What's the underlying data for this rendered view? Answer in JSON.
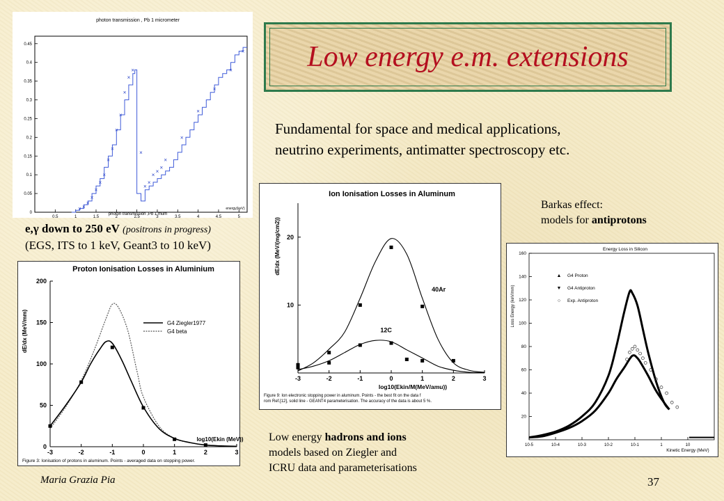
{
  "slide": {
    "title": "Low energy e.m. extensions",
    "intro_line1": "Fundamental for space and medical applications,",
    "intro_line2": "neutrino experiments, antimatter spectroscopy etc.",
    "footer_author": "Maria Grazia Pia",
    "page_number": "37",
    "title_color": "#b40f1f",
    "frame_color": "#2e7a4c"
  },
  "captions": {
    "photon_bold": "e,γ down to 250 eV",
    "photon_italic": "(positrons in progress)",
    "photon_line2": "(EGS, ITS to 1 keV, Geant3 to 10 keV)",
    "barkas_line1": "Barkas effect:",
    "barkas_line2_pre": "models for ",
    "barkas_line2_bold": "antiprotons",
    "hadron_line1_pre": "Low energy ",
    "hadron_line1_bold": "hadrons and ions",
    "hadron_line2": "models based on Ziegler and",
    "hadron_line3": "ICRU data and parameterisations"
  },
  "chart_data": [
    {
      "type": "line",
      "title": "photon transmission , Pb 1 micrometer",
      "xlabel": "photon transmission ,Pb 1 mum",
      "ylabel": "",
      "corner_label": "energy(keV)",
      "xlim": [
        0,
        5.2
      ],
      "ylim": [
        0,
        0.47
      ],
      "x_ticks": [
        "0.5",
        "1",
        "1.5",
        "2",
        "2.5",
        "3",
        "3.5",
        "4",
        "4.5",
        "5"
      ],
      "y_ticks": [
        "0",
        "0.05",
        "0.1",
        "0.15",
        "0.2",
        "0.25",
        "0.3",
        "0.35",
        "0.4",
        "0.45"
      ],
      "step_x": [
        0.9,
        1.0,
        1.1,
        1.2,
        1.3,
        1.4,
        1.5,
        1.6,
        1.7,
        1.8,
        1.9,
        2.0,
        2.1,
        2.2,
        2.3,
        2.4,
        2.45,
        2.5,
        2.6,
        2.7,
        2.8,
        2.9,
        3.0,
        3.1,
        3.2,
        3.3,
        3.4,
        3.5,
        3.6,
        3.7,
        3.8,
        3.9,
        4.0,
        4.1,
        4.2,
        4.3,
        4.4,
        4.5,
        4.6,
        4.7,
        4.8,
        4.9,
        5.0,
        5.1,
        5.2
      ],
      "step_y": [
        0.0,
        0.005,
        0.01,
        0.02,
        0.03,
        0.05,
        0.07,
        0.09,
        0.12,
        0.15,
        0.18,
        0.22,
        0.26,
        0.3,
        0.34,
        0.37,
        0.38,
        0.05,
        0.03,
        0.06,
        0.07,
        0.08,
        0.09,
        0.1,
        0.11,
        0.12,
        0.14,
        0.16,
        0.18,
        0.2,
        0.22,
        0.24,
        0.26,
        0.28,
        0.3,
        0.32,
        0.34,
        0.36,
        0.37,
        0.38,
        0.4,
        0.42,
        0.43,
        0.44,
        0.44
      ],
      "points_x": [
        1.1,
        1.2,
        1.3,
        1.4,
        1.5,
        1.6,
        1.7,
        1.8,
        1.9,
        2.0,
        2.1,
        2.2,
        2.3,
        2.4,
        2.6,
        2.7,
        2.8,
        2.9,
        3.0,
        3.1,
        3.2,
        3.6,
        4.0,
        4.4,
        4.8,
        5.1
      ],
      "points_y": [
        0.01,
        0.015,
        0.025,
        0.04,
        0.06,
        0.08,
        0.1,
        0.14,
        0.17,
        0.22,
        0.26,
        0.32,
        0.36,
        0.38,
        0.16,
        0.07,
        0.08,
        0.1,
        0.11,
        0.12,
        0.14,
        0.2,
        0.27,
        0.33,
        0.38,
        0.43
      ]
    },
    {
      "type": "line",
      "title": "Proton Ionisation Losses in Aluminium",
      "xlabel": "log10(Ekin (MeV))",
      "ylabel": "dE/dx (MeV/mm)",
      "caption": "Figure 3: Ionisation of protons in aluminum. Points - averaged data on stopping power.",
      "xlim": [
        -3,
        3
      ],
      "ylim": [
        0,
        200
      ],
      "x_ticks": [
        "-3",
        "-2",
        "-1",
        "0",
        "1",
        "2",
        "3"
      ],
      "y_ticks": [
        "0",
        "50",
        "100",
        "150",
        "200"
      ],
      "series": [
        {
          "name": "G4 Ziegler1977",
          "x": [
            -3,
            -2.5,
            -2,
            -1.7,
            -1.4,
            -1.2,
            -1,
            -0.7,
            -0.4,
            0,
            0.5,
            1,
            1.5,
            2,
            2.5,
            3
          ],
          "y": [
            25,
            50,
            78,
            100,
            118,
            127,
            125,
            105,
            80,
            48,
            22,
            10,
            5,
            2,
            1,
            0.5
          ]
        },
        {
          "name": "G4 beta",
          "x": [
            -3,
            -2.5,
            -2,
            -1.6,
            -1.2,
            -1,
            -0.8,
            -0.5,
            -0.2,
            0,
            0.5,
            1,
            1.5,
            2,
            2.5,
            3
          ],
          "y": [
            22,
            48,
            80,
            115,
            155,
            172,
            168,
            140,
            90,
            60,
            25,
            10,
            5,
            2,
            1,
            0.5
          ]
        }
      ],
      "points": {
        "x": [
          -3,
          -2,
          -1,
          0,
          1,
          2
        ],
        "y": [
          25,
          78,
          120,
          47,
          9,
          2
        ]
      }
    },
    {
      "type": "line",
      "title": "Ion Ionisation Losses in Aluminum",
      "xlabel": "log10(Ekin/M(MeV/amu))",
      "ylabel": "dE/dx (MeV/(mg/cm2))",
      "caption": "Figure 9: Ion electronic stopping power in aluminum. Points - the best fit on the data from Ref.[12], solid line - GEANT4 parameterisation. The accuracy of the data is about 5 %.",
      "xlim": [
        -3,
        3
      ],
      "ylim": [
        0,
        25
      ],
      "x_ticks": [
        "-3",
        "-2",
        "-1",
        "0",
        "1",
        "2",
        "3"
      ],
      "y_ticks": [
        "10",
        "20"
      ],
      "series": [
        {
          "name": "40Ar",
          "x": [
            -3,
            -2.5,
            -2,
            -1.5,
            -1,
            -0.5,
            0,
            0.5,
            1,
            1.5,
            2,
            2.5,
            3
          ],
          "y": [
            0.3,
            1.5,
            3.5,
            6,
            11,
            16.5,
            19.8,
            17.5,
            11,
            5,
            1.5,
            0.4,
            0.1
          ]
        },
        {
          "name": "12C",
          "x": [
            -3,
            -2.5,
            -2,
            -1.5,
            -1,
            -0.5,
            0,
            0.5,
            1,
            1.5,
            2,
            2.5,
            3
          ],
          "y": [
            0.5,
            1,
            1.8,
            3,
            4.2,
            4.8,
            4.6,
            3.4,
            2.2,
            1,
            0.4,
            0.1,
            0.05
          ]
        }
      ],
      "points_ar": {
        "x": [
          -3,
          -2,
          -1,
          0,
          1,
          2
        ],
        "y": [
          1.2,
          3,
          10,
          18.5,
          9.8,
          1.8
        ]
      },
      "points_c": {
        "x": [
          -3,
          -2,
          -1,
          0,
          0.5,
          1
        ],
        "y": [
          0.8,
          1.5,
          4.1,
          4.4,
          2,
          1.8
        ]
      },
      "annotations": [
        "40Ar",
        "12C"
      ]
    },
    {
      "type": "line",
      "title": "Energy Loss in Silicon",
      "xlabel": "Kinetic Energy (MeV)",
      "ylabel": "Loss Energy (keV/mm)",
      "xlim": [
        -5,
        2
      ],
      "ylim": [
        0,
        160
      ],
      "x_ticks": [
        "10-5",
        "10-4",
        "10-3",
        "10-2",
        "10-1",
        "1",
        "10"
      ],
      "y_ticks": [
        "20",
        "40",
        "60",
        "80",
        "100",
        "120",
        "140",
        "160"
      ],
      "legend": [
        "G4 Proton",
        "G4 Antiproton",
        "Exp. Antiproton"
      ],
      "series": [
        {
          "name": "G4 Proton",
          "x": [
            -5,
            -4.5,
            -4,
            -3.5,
            -3,
            -2.5,
            -2,
            -1.7,
            -1.4,
            -1.2,
            -1.1,
            -0.9,
            -0.7,
            -0.5,
            -0.2,
            0.1,
            0.3
          ],
          "y": [
            2,
            4,
            7,
            12,
            20,
            32,
            55,
            80,
            110,
            127,
            126,
            115,
            95,
            75,
            50,
            32,
            26
          ]
        },
        {
          "name": "G4 Antiproton",
          "x": [
            -5,
            -4.5,
            -4,
            -3.5,
            -3,
            -2.5,
            -2,
            -1.7,
            -1.4,
            -1.1,
            -0.9,
            -0.7,
            -0.5,
            -0.2,
            0.1,
            0.3
          ],
          "y": [
            2,
            3,
            6,
            10,
            16,
            25,
            40,
            52,
            62,
            72,
            70,
            63,
            55,
            42,
            32,
            26
          ]
        }
      ],
      "points": {
        "x": [
          -1.3,
          -1.2,
          -1.1,
          -1.0,
          -0.9,
          -0.8,
          -0.7,
          -0.6,
          -0.4,
          -0.2,
          0.0,
          0.2,
          0.4,
          0.6
        ],
        "y": [
          69,
          75,
          78,
          80,
          77,
          74,
          70,
          66,
          60,
          52,
          45,
          40,
          32,
          28
        ]
      }
    }
  ]
}
